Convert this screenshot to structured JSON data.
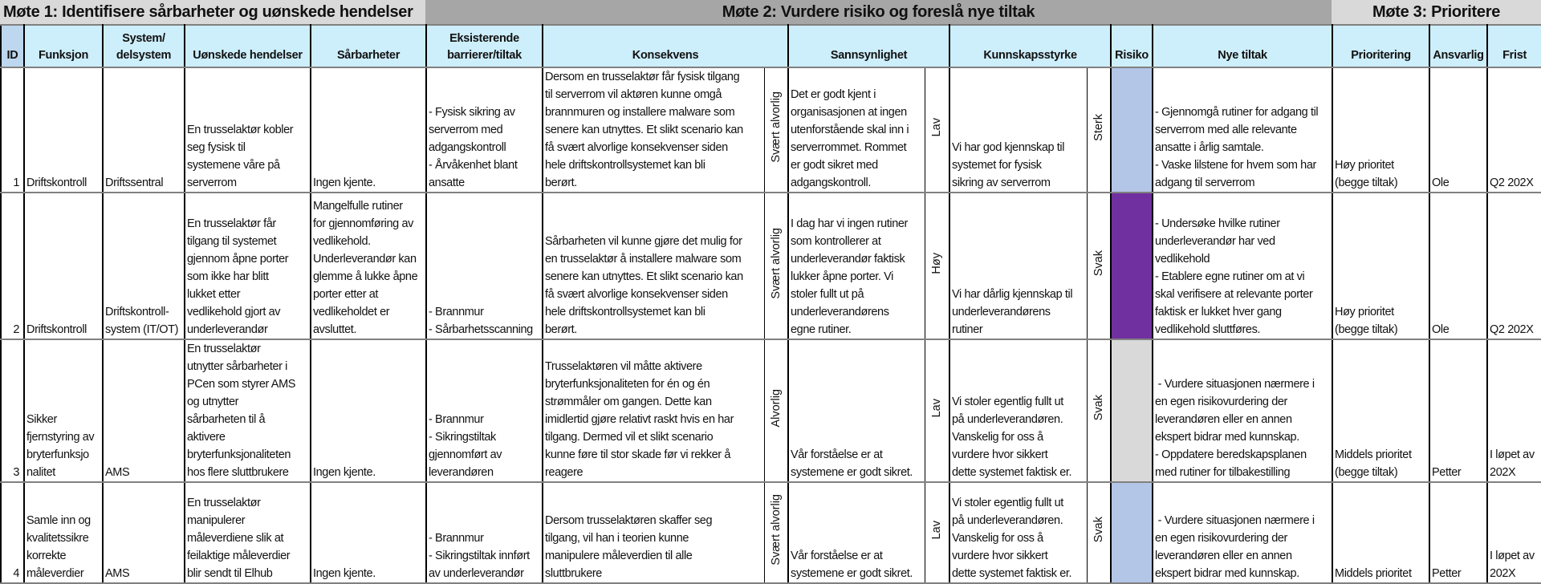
{
  "titles": {
    "meeting1": "Møte 1: Identifisere sårbarheter og uønskede hendelser",
    "meeting2": "Møte 2: Vurdere risiko og foreslå nye tiltak",
    "meeting3": "Møte 3: Prioritere"
  },
  "headers": {
    "id": "ID",
    "funksjon": "Funksjon",
    "system": "System/\ndelsystem",
    "hendelser": "Uønskede hendelser",
    "sarbarheter": "Sårbarheter",
    "barrierer": "Eksisterende\nbarrierer/tiltak",
    "konsekvens": "Konsekvens",
    "sannsynlighet": "Sannsynlighet",
    "kunnskap": "Kunnskapsstyrke",
    "risiko": "Risiko",
    "nye_tiltak": "Nye tiltak",
    "prioritering": "Prioritering",
    "ansvarlig": "Ansvarlig",
    "frist": "Frist"
  },
  "risk_colors": {
    "low": "#b4c6e7",
    "high": "#7030a0",
    "unrated": "#d9d9d9"
  },
  "rows": [
    {
      "id": "1",
      "funksjon": "Driftskontroll",
      "system": "Driftssentral",
      "hendelser": "En trusselaktør kobler\nseg fysisk til\nsystemene våre på\nserverrom",
      "sarbarheter": "Ingen kjente.",
      "barrierer": "- Fysisk sikring av\nserverrom med\nadgangskontroll\n- Årvåkenhet blant\nansatte",
      "konsekvens": "Dersom en trusselaktør får fysisk tilgang\ntil serverrom vil aktøren kunne omgå\nbrannmuren og installere malware som\nsenere kan utnyttes. Et slikt scenario kan\nfå svært alvorlige konsekvenser siden\nhele driftskontrollsystemet kan bli\nberørt.",
      "konsekvens_nivaa": "Svært alvorlig",
      "sannsynlighet": "Det er godt kjent i\norganisasjonen at ingen\nutenforstående skal inn i\nserverrommet. Rommet\ner godt sikret med\nadgangskontroll.",
      "sannsynlighet_nivaa": "Lav",
      "kunnskap": "Vi har god kjennskap til\nsystemet for fysisk\nsikring av serverrom",
      "kunnskap_nivaa": "Sterk",
      "risiko_color": "#b4c6e7",
      "nye_tiltak": "- Gjennomgå rutiner for adgang til\nserverrom med alle relevante\nansatte i årlig samtale.\n- Vaske lilstene for hvem som har\nadgang til serverrom",
      "prioritering": "Høy prioritet\n(begge tiltak)",
      "ansvarlig": "Ole",
      "frist": "Q2 202X"
    },
    {
      "id": "2",
      "funksjon": "Driftskontroll",
      "system": "Driftskontroll-\nsystem (IT/OT)",
      "hendelser": "En trusselaktør får\ntilgang til systemet\ngjennom åpne porter\nsom ikke har blitt\nlukket etter\nvedlikehold gjort av\nunderleverandør",
      "sarbarheter": "Mangelfulle rutiner\nfor gjennomføring av\nvedlikehold.\nUnderleverandør kan\nglemme å lukke åpne\nporter etter at\nvedlikeholdet er\navsluttet.",
      "barrierer": "- Brannmur\n- Sårbarhetsscanning",
      "konsekvens": "Sårbarheten vil kunne gjøre det mulig for\nen trusselaktør å installere malware som\nsenere kan utnyttes. Et slikt scenario kan\nfå svært alvorlige konsekvenser siden\nhele driftskontrollsystemet kan bli\nberørt.",
      "konsekvens_nivaa": "Svært alvorlig",
      "sannsynlighet": "I dag har vi ingen rutiner\nsom kontrollerer at\nunderleverandør faktisk\nlukker åpne porter. Vi\nstoler fullt ut på\nunderleverandørens\negne rutiner.",
      "sannsynlighet_nivaa": "Høy",
      "kunnskap": "Vi har dårlig kjennskap til\nunderleverandørens\nrutiner",
      "kunnskap_nivaa": "Svak",
      "risiko_color": "#7030a0",
      "nye_tiltak": "- Undersøke hvilke rutiner\nunderleverandør har ved\nvedlikehold\n- Etablere egne rutiner om at vi\nskal verifisere at relevante porter\nfaktisk er lukket hver gang\nvedlikehold sluttføres.",
      "prioritering": "Høy prioritet\n(begge tiltak)",
      "ansvarlig": "Ole",
      "frist": "Q2 202X"
    },
    {
      "id": "3",
      "funksjon": "Sikker\nfjernstyring av\nbryterfunksjo\nnalitet",
      "system": "AMS",
      "hendelser": "En trusselaktør\nutnytter sårbarheter i\nPCen som styrer AMS\nog utnytter\nsårbarheten til å\naktivere\nbryterfunksjonaliteten\nhos flere sluttbrukere",
      "sarbarheter": "Ingen kjente.",
      "barrierer": "- Brannmur\n- Sikringstiltak\ngjennomført av\nleverandøren",
      "konsekvens": "Trusselaktøren vil måtte aktivere\nbryterfunksjonaliteten for én og én\nstrømmåler om gangen. Dette kan\nimidlertid gjøre relativt raskt hvis en har\ntilgang. Dermed vil et slikt scenario\nkunne føre til stor skade før vi rekker å\nreagere",
      "konsekvens_nivaa": "Alvorlig",
      "sannsynlighet": "Vår forståelse er at\nsystemene er godt sikret.",
      "sannsynlighet_nivaa": "Lav",
      "kunnskap": "Vi stoler egentlig fullt ut\npå underleverandøren.\nVanskelig for oss å\nvurdere hvor sikkert\ndette systemet faktisk er.",
      "kunnskap_nivaa": "Svak",
      "risiko_color": "#d9d9d9",
      "nye_tiltak": " - Vurdere situasjonen nærmere i\nen egen risikovurdering der\nleverandøren eller en annen\nekspert bidrar med kunnskap.\n- Oppdatere beredskapsplanen\nmed rutiner for tilbakestilling",
      "prioritering": "Middels prioritet\n(begge tiltak)",
      "ansvarlig": "Petter",
      "frist": "I løpet av\n202X"
    },
    {
      "id": "4",
      "funksjon": "Samle inn og\nkvalitetssikre\nkorrekte\nmåleverdier",
      "system": "AMS",
      "hendelser": "En trusselaktør\nmanipulerer\nmåleverdiene slik at\nfeilaktige måleverdier\nblir sendt til Elhub",
      "sarbarheter": "Ingen kjente.",
      "barrierer": "- Brannmur\n- Sikringstiltak innført\nav underleverandør",
      "konsekvens": "Dersom trusselaktøren skaffer seg\ntilgang, vil han i teorien kunne\nmanipulere måleverdien til alle\nsluttbrukere",
      "konsekvens_nivaa": "Svært alvorlig",
      "sannsynlighet": "Vår forståelse er at\nsystemene er godt sikret.",
      "sannsynlighet_nivaa": "Lav",
      "kunnskap": "Vi stoler egentlig fullt ut\npå underleverandøren.\nVanskelig for oss å\nvurdere hvor sikkert\ndette systemet faktisk er.",
      "kunnskap_nivaa": "Svak",
      "risiko_color": "#b4c6e7",
      "nye_tiltak": " - Vurdere situasjonen nærmere i\nen egen risikovurdering der\nleverandøren eller en annen\nekspert bidrar med kunnskap.",
      "prioritering": "Middels prioritet",
      "ansvarlig": "Petter",
      "frist": "I løpet av\n202X"
    }
  ]
}
